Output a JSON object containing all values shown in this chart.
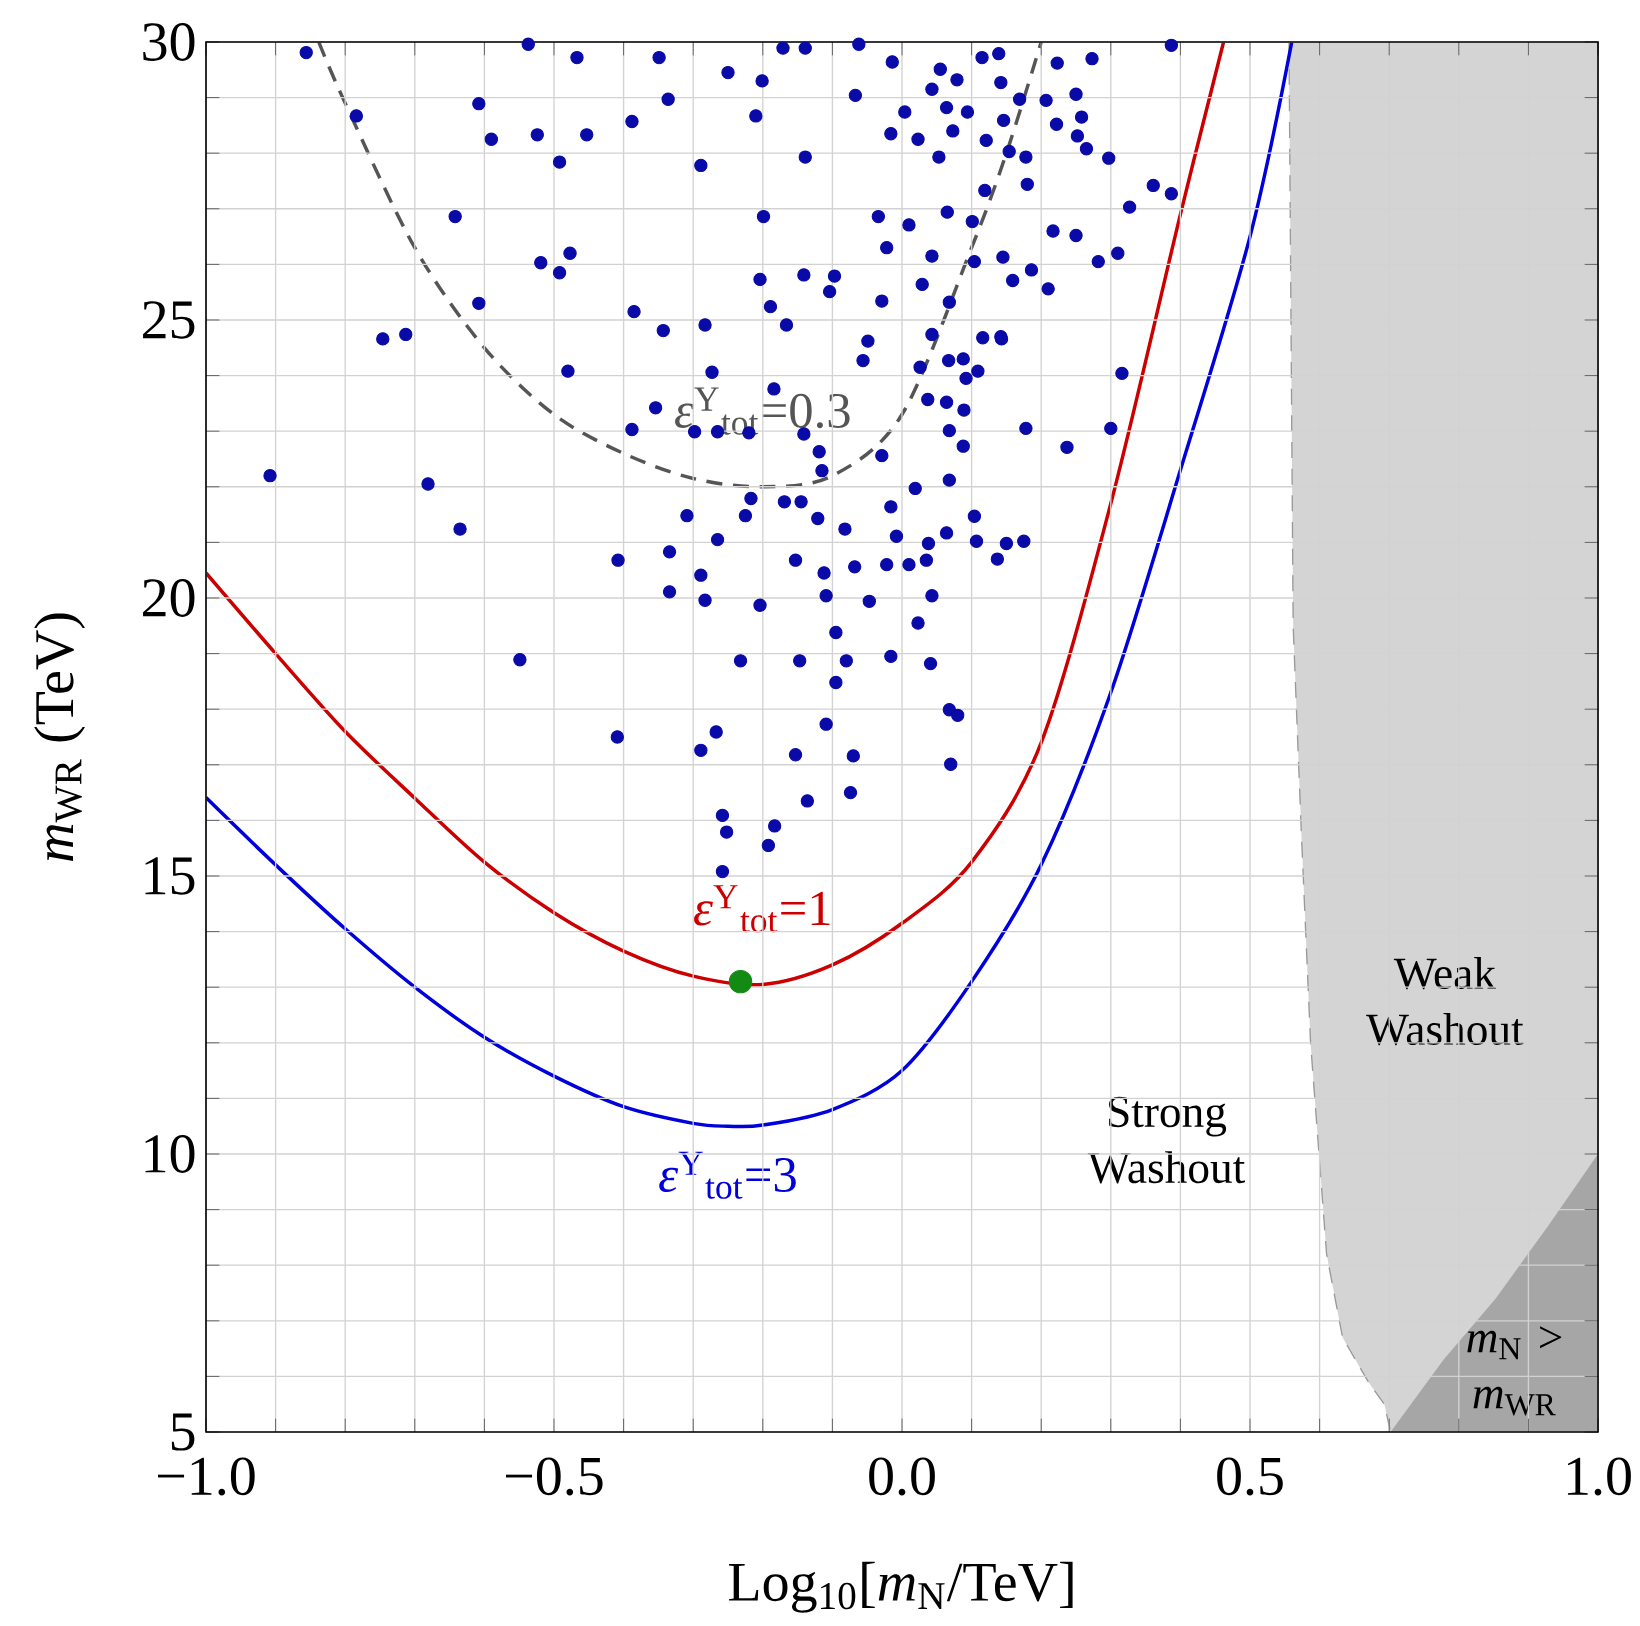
{
  "chart_data": {
    "type": "scatter",
    "xlabel": "Log$_{10}$[*m*$_{N}$/TeV]",
    "ylabel": "*m*$_{WR}$   (TeV)",
    "xlim": [
      -1,
      1
    ],
    "ylim": [
      5,
      30
    ],
    "grid": true,
    "xticks": [
      {
        "value": -1.0,
        "label": "−1.0"
      },
      {
        "value": -0.9,
        "label": null
      },
      {
        "value": -0.8,
        "label": null
      },
      {
        "value": -0.7,
        "label": null
      },
      {
        "value": -0.6,
        "label": null
      },
      {
        "value": -0.5,
        "label": "−0.5"
      },
      {
        "value": -0.4,
        "label": null
      },
      {
        "value": -0.3,
        "label": null
      },
      {
        "value": -0.2,
        "label": null
      },
      {
        "value": -0.1,
        "label": null
      },
      {
        "value": 0.0,
        "label": "0.0"
      },
      {
        "value": 0.1,
        "label": null
      },
      {
        "value": 0.2,
        "label": null
      },
      {
        "value": 0.3,
        "label": null
      },
      {
        "value": 0.4,
        "label": null
      },
      {
        "value": 0.5,
        "label": "0.5"
      },
      {
        "value": 0.6,
        "label": null
      },
      {
        "value": 0.7,
        "label": null
      },
      {
        "value": 0.8,
        "label": null
      },
      {
        "value": 0.9,
        "label": null
      },
      {
        "value": 1.0,
        "label": "1.0"
      }
    ],
    "yticks": [
      5,
      {
        "value": 6,
        "label": null
      },
      {
        "value": 7,
        "label": null
      },
      {
        "value": 8,
        "label": null
      },
      {
        "value": 9,
        "label": null
      },
      10,
      {
        "value": 11,
        "label": null
      },
      {
        "value": 12,
        "label": null
      },
      {
        "value": 13,
        "label": null
      },
      {
        "value": 14,
        "label": null
      },
      15,
      {
        "value": 16,
        "label": null
      },
      {
        "value": 17,
        "label": null
      },
      {
        "value": 18,
        "label": null
      },
      {
        "value": 19,
        "label": null
      },
      20,
      {
        "value": 21,
        "label": null
      },
      {
        "value": 22,
        "label": null
      },
      {
        "value": 23,
        "label": null
      },
      {
        "value": 24,
        "label": null
      },
      25,
      {
        "value": 26,
        "label": null
      },
      {
        "value": 27,
        "label": null
      },
      {
        "value": 28,
        "label": null
      },
      {
        "value": 29,
        "label": null
      },
      30
    ],
    "annotations": [
      "Strong Washout",
      "Weak Washout",
      "*m*$_{N}$ > *m*$_{WR}$"
    ],
    "series": [
      {
        "type": "area",
        "color": "#d4d4d4",
        "line_style": "dashed",
        "x": [
          0.556,
          0.562,
          0.574,
          0.587,
          0.61,
          0.633,
          0.67,
          0.693,
          0.702,
          1.0,
          1.0
        ],
        "values": [
          30,
          19.5,
          15.7,
          12.0,
          8.2,
          6.7,
          5.9,
          5.5,
          5,
          5,
          30
        ]
      },
      {
        "type": "area",
        "color": "#a6a6a6",
        "x": [
          0.702,
          0.778,
          0.853,
          0.928,
          1.0,
          1.0
        ],
        "values": [
          5,
          6.3,
          7.4,
          8.7,
          10.0,
          5
        ]
      },
      {
        "color": "#0a0aa8",
        "marker": "circle",
        "x": [
          -0.856,
          -0.784,
          -0.537,
          -0.467,
          -0.349,
          -0.25,
          -0.608,
          -0.59,
          -0.524,
          -0.492,
          -0.453,
          -0.336,
          -0.388,
          -0.21,
          -0.171,
          -0.139,
          -0.201,
          -0.067,
          -0.062,
          -0.014,
          -0.016,
          0.004,
          0.023,
          0.043,
          0.055,
          0.064,
          0.073,
          0.079,
          0.094,
          0.115,
          0.139,
          0.142,
          0.121,
          0.146,
          0.154,
          0.178,
          0.169,
          0.223,
          0.207,
          0.222,
          0.258,
          0.252,
          0.25,
          0.273,
          0.265,
          0.297,
          0.387,
          -0.139,
          -0.289,
          0.387,
          0.361,
          0.327,
          0.18,
          0.119,
          0.053,
          -0.642,
          -0.608,
          -0.519,
          -0.492,
          -0.477,
          -0.385,
          -0.746,
          -0.713,
          -0.199,
          -0.204,
          -0.189,
          -0.166,
          -0.141,
          -0.104,
          -0.097,
          -0.034,
          0.01,
          -0.029,
          -0.022,
          0.029,
          0.043,
          0.065,
          0.068,
          0.104,
          0.101,
          0.145,
          0.159,
          0.186,
          0.21,
          0.217,
          0.25,
          0.282,
          0.31,
          -0.283,
          -0.343,
          0.116,
          0.143,
          0.043,
          -0.049,
          -0.48,
          -0.354,
          -0.388,
          -0.273,
          -0.298,
          -0.265,
          -0.22,
          -0.184,
          -0.141,
          -0.119,
          -0.115,
          -0.056,
          -0.029,
          0.026,
          0.037,
          0.067,
          0.064,
          0.068,
          0.088,
          0.092,
          0.109,
          0.089,
          0.088,
          0.142,
          0.178,
          0.237,
          0.3,
          0.316,
          -0.908,
          -0.681,
          -0.635,
          0.019,
          0.068,
          -0.309,
          -0.265,
          -0.225,
          -0.217,
          -0.169,
          -0.145,
          -0.121,
          -0.082,
          -0.008,
          0.01,
          -0.016,
          0.064,
          0.104,
          0.107,
          0.15,
          0.175,
          0.137,
          0.038,
          0.035,
          0.043,
          0.023,
          -0.334,
          -0.334,
          -0.289,
          -0.283,
          -0.408,
          -0.153,
          -0.112,
          -0.109,
          -0.068,
          -0.047,
          -0.022,
          -0.016,
          0.041,
          -0.08,
          -0.095,
          -0.147,
          -0.204,
          -0.232,
          -0.549,
          -0.409,
          -0.289,
          -0.267,
          -0.153,
          -0.109,
          -0.095,
          -0.07,
          -0.074,
          -0.136,
          0.068,
          0.08,
          0.07,
          -0.258,
          -0.252,
          -0.192,
          -0.183,
          -0.258
        ],
        "values": [
          29.81,
          28.67,
          29.96,
          29.72,
          29.72,
          29.45,
          28.89,
          28.25,
          28.33,
          27.84,
          28.33,
          28.97,
          28.57,
          28.67,
          29.89,
          29.89,
          29.3,
          29.04,
          29.96,
          29.64,
          28.35,
          28.74,
          28.25,
          29.15,
          29.51,
          28.82,
          28.4,
          29.32,
          28.74,
          29.72,
          29.79,
          29.27,
          28.23,
          28.59,
          28.03,
          27.93,
          28.97,
          29.62,
          28.95,
          28.52,
          28.65,
          28.31,
          29.06,
          29.7,
          28.08,
          27.91,
          29.94,
          27.93,
          27.78,
          27.27,
          27.42,
          27.03,
          27.44,
          27.33,
          27.93,
          26.86,
          25.3,
          26.03,
          25.85,
          26.2,
          25.15,
          24.66,
          24.74,
          26.86,
          25.73,
          25.24,
          24.91,
          25.81,
          25.51,
          25.79,
          26.86,
          26.71,
          25.34,
          26.3,
          25.64,
          26.15,
          26.94,
          25.32,
          26.05,
          26.77,
          26.13,
          25.71,
          25.9,
          25.56,
          26.6,
          26.52,
          26.05,
          26.2,
          24.91,
          24.81,
          24.68,
          24.66,
          24.74,
          24.62,
          24.08,
          23.42,
          23.03,
          24.06,
          22.99,
          22.99,
          22.97,
          23.76,
          22.95,
          22.63,
          22.29,
          24.27,
          22.56,
          24.15,
          23.57,
          24.27,
          23.52,
          23.01,
          24.3,
          23.95,
          24.08,
          23.38,
          22.73,
          24.7,
          23.05,
          22.71,
          23.05,
          24.04,
          22.2,
          22.05,
          21.24,
          21.97,
          22.12,
          21.48,
          21.05,
          21.48,
          21.79,
          21.73,
          21.73,
          21.43,
          21.24,
          21.11,
          20.6,
          21.64,
          21.17,
          21.47,
          21.02,
          20.98,
          21.02,
          20.7,
          20.98,
          20.68,
          20.04,
          19.55,
          20.83,
          20.11,
          20.41,
          19.96,
          20.68,
          20.68,
          20.45,
          20.04,
          20.56,
          19.94,
          20.6,
          18.95,
          18.82,
          18.87,
          19.38,
          18.87,
          19.87,
          18.87,
          18.89,
          17.5,
          17.26,
          17.59,
          17.18,
          17.73,
          18.48,
          17.16,
          16.5,
          16.35,
          17.99,
          17.89,
          17.01,
          16.09,
          15.79,
          15.55,
          15.9,
          15.08
        ]
      },
      {
        "type": "line",
        "name": "*ε*$^{Y}$$_{tot}$=0.3",
        "color": "#555555",
        "line_style": "dashed",
        "x": [
          -0.838,
          -0.8,
          -0.7,
          -0.6,
          -0.5,
          -0.4,
          -0.3,
          -0.2,
          -0.1,
          0.0,
          0.1,
          0.15,
          0.2
        ],
        "values": [
          30,
          28.9,
          26.3,
          24.5,
          23.3,
          22.6,
          22.15,
          22.0,
          22.2,
          23.3,
          26.3,
          28.0,
          30
        ]
      },
      {
        "type": "line",
        "name": "*ε*$^{Y}$$_{tot}$=1",
        "color": "#cc0000",
        "line_style": "solid",
        "x": [
          -1,
          -0.9,
          -0.8,
          -0.7,
          -0.6,
          -0.5,
          -0.4,
          -0.3,
          -0.2,
          -0.1,
          0.0,
          0.1,
          0.2,
          0.3,
          0.4,
          0.462
        ],
        "values": [
          20.45,
          19.0,
          17.6,
          16.4,
          15.25,
          14.34,
          13.65,
          13.2,
          13.05,
          13.4,
          14.15,
          15.25,
          17.4,
          21.7,
          26.9,
          30
        ]
      },
      {
        "type": "line",
        "name": "*ε*$^{Y}$$_{tot}$=3",
        "color": "#0000dd",
        "line_style": "solid",
        "x": [
          -1,
          -0.9,
          -0.8,
          -0.7,
          -0.6,
          -0.5,
          -0.4,
          -0.3,
          -0.25,
          -0.2,
          -0.1,
          0.0,
          0.1,
          0.2,
          0.3,
          0.4,
          0.5,
          0.56
        ],
        "values": [
          16.41,
          15.2,
          14.05,
          13.0,
          12.1,
          11.4,
          10.85,
          10.55,
          10.5,
          10.52,
          10.8,
          11.5,
          13.1,
          15.2,
          18.3,
          22.3,
          26.5,
          30
        ]
      },
      {
        "color": "#138a13",
        "marker": "circle",
        "x": [
          -0.232
        ],
        "values": [
          13.1
        ]
      }
    ]
  }
}
